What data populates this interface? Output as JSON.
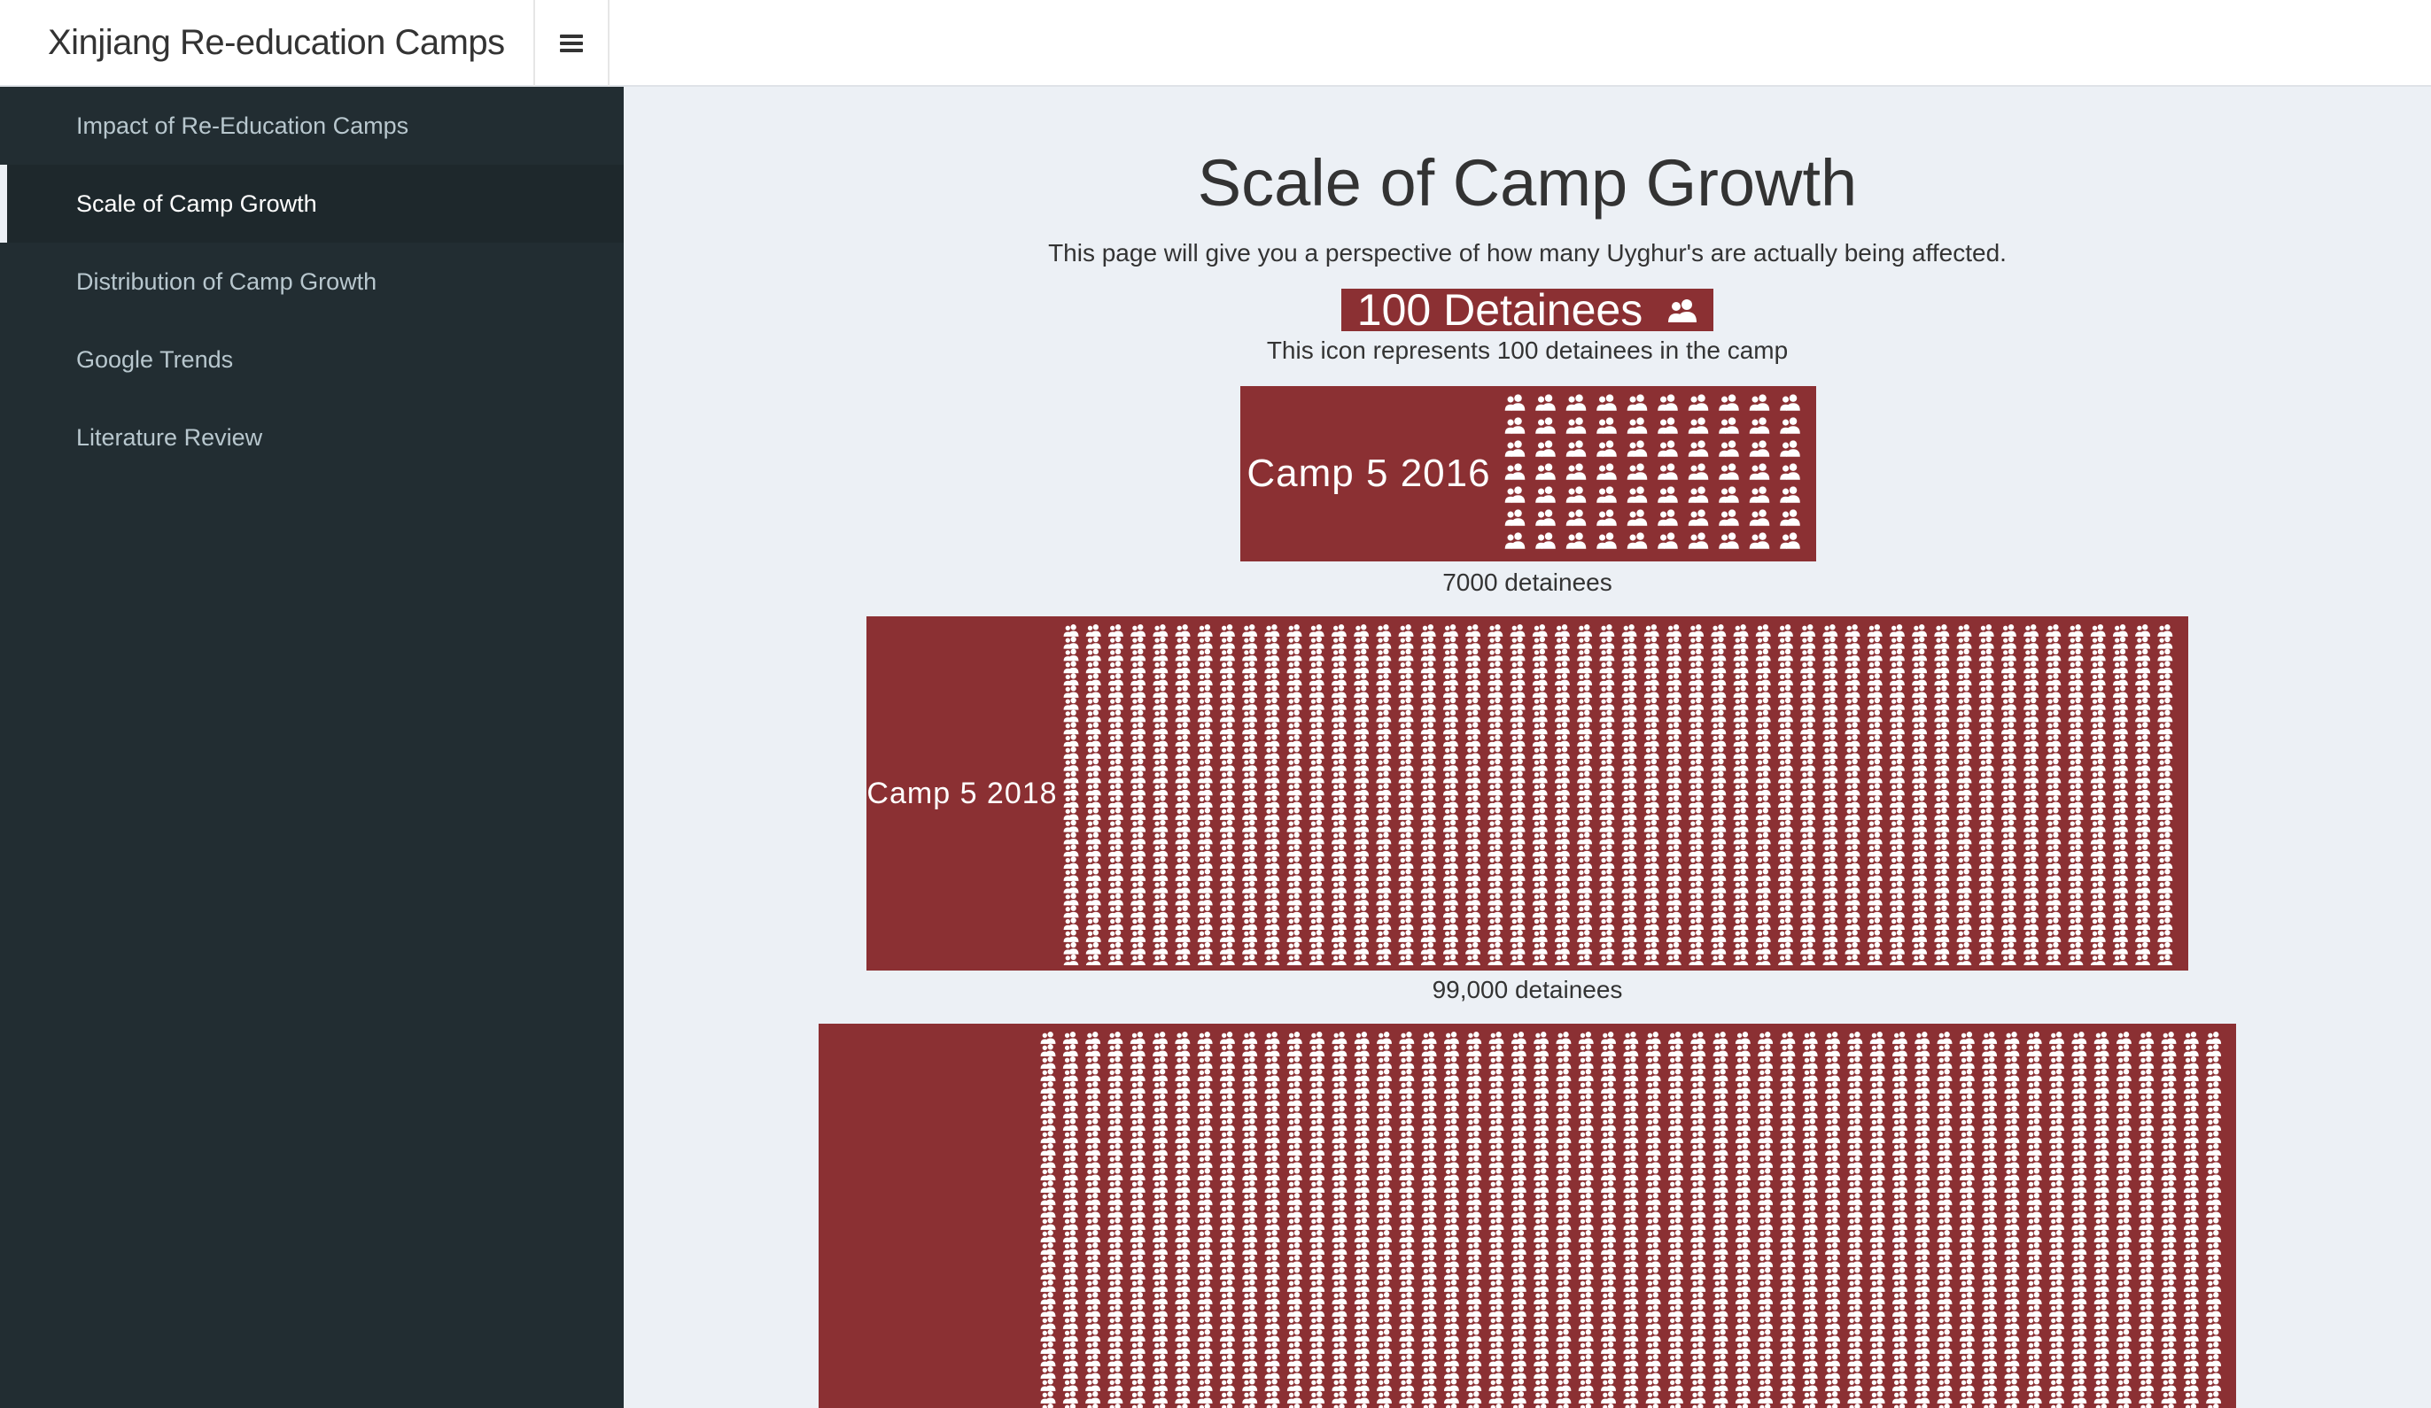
{
  "app": {
    "title": "Xinjiang Re-education Camps",
    "toggle_icon": "hamburger-icon"
  },
  "sidebar": {
    "items": [
      {
        "label": "Impact of Re-Education Camps",
        "active": false
      },
      {
        "label": "Scale of Camp Growth",
        "active": true
      },
      {
        "label": "Distribution of Camp Growth",
        "active": false
      },
      {
        "label": "Google Trends",
        "active": false
      },
      {
        "label": "Literature Review",
        "active": false
      }
    ]
  },
  "main": {
    "title": "Scale of Camp Growth",
    "subtitle": "This page will give you a perspective of how many Uyghur's are actually being affected.",
    "legend": {
      "label": "100 Detainees",
      "icon": "users-icon",
      "caption": "This icon represents 100 detainees in the camp"
    },
    "camps": [
      {
        "label": "Camp 5 2016",
        "detainees": 7000,
        "count_text": "7000 detainees"
      },
      {
        "label": "Camp 5 2018",
        "detainees": 99000,
        "count_text": "99,000 detainees"
      },
      {
        "label": "",
        "detainees": null,
        "count_text": ""
      }
    ]
  },
  "colors": {
    "accent": "#8b3033",
    "sidebar_bg": "#222d32",
    "content_bg": "#ecf0f5"
  }
}
